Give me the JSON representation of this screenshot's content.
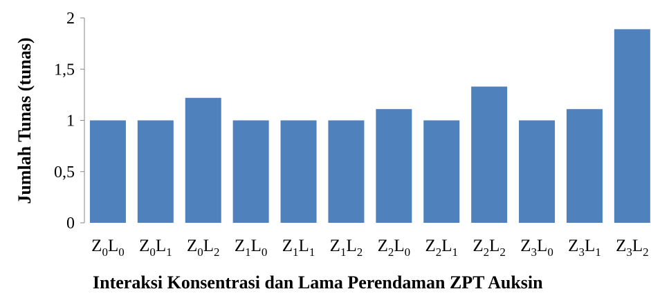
{
  "chart_data": {
    "type": "bar",
    "title": "",
    "xlabel": "Interaksi Konsentrasi dan Lama Perendaman ZPT Auksin",
    "ylabel": "Jumlah Tunas (tunas)",
    "ylim": [
      0,
      2
    ],
    "yticks": [
      "0",
      "0,5",
      "1",
      "1,5",
      "2"
    ],
    "grid": false,
    "legend": "none",
    "bar_color": "#4f81bd",
    "categories": [
      {
        "z": "0",
        "l": "0"
      },
      {
        "z": "0",
        "l": "1"
      },
      {
        "z": "0",
        "l": "2"
      },
      {
        "z": "1",
        "l": "0"
      },
      {
        "z": "1",
        "l": "1"
      },
      {
        "z": "1",
        "l": "2"
      },
      {
        "z": "2",
        "l": "0"
      },
      {
        "z": "2",
        "l": "1"
      },
      {
        "z": "2",
        "l": "2"
      },
      {
        "z": "3",
        "l": "0"
      },
      {
        "z": "3",
        "l": "1"
      },
      {
        "z": "3",
        "l": "2"
      }
    ],
    "values": [
      1.0,
      1.0,
      1.22,
      1.0,
      1.0,
      1.0,
      1.11,
      1.0,
      1.33,
      1.0,
      1.11,
      1.89
    ]
  }
}
